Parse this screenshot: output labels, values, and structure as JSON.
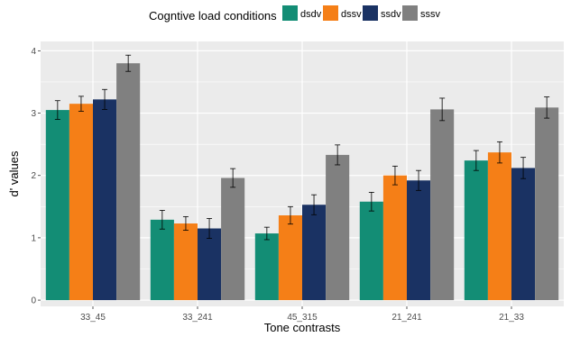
{
  "chart_data": {
    "type": "bar",
    "categories": [
      "33_45",
      "33_241",
      "45_315",
      "21_241",
      "21_33"
    ],
    "series": [
      {
        "name": "dsdv",
        "color": "#138d75",
        "values": [
          3.05,
          1.29,
          1.07,
          1.58,
          2.24
        ],
        "errors": [
          0.15,
          0.15,
          0.1,
          0.15,
          0.16
        ]
      },
      {
        "name": "dssv",
        "color": "#f57f17",
        "values": [
          3.15,
          1.23,
          1.36,
          2.0,
          2.37
        ],
        "errors": [
          0.12,
          0.11,
          0.14,
          0.15,
          0.17
        ]
      },
      {
        "name": "ssdv",
        "color": "#1a3263",
        "values": [
          3.22,
          1.15,
          1.53,
          1.92,
          2.12
        ],
        "errors": [
          0.16,
          0.16,
          0.16,
          0.16,
          0.17
        ]
      },
      {
        "name": "sssv",
        "color": "#808080",
        "values": [
          3.8,
          1.96,
          2.33,
          3.06,
          3.09
        ],
        "errors": [
          0.13,
          0.15,
          0.16,
          0.18,
          0.17
        ]
      }
    ],
    "title": "",
    "xlabel": "Tone contrasts",
    "ylabel": "d' values",
    "ylim": [
      -0.1,
      4.15
    ],
    "yticks": [
      0,
      1,
      2,
      3,
      4
    ],
    "legend": {
      "title": "Cogntive load conditions",
      "position": "top"
    },
    "grid": true,
    "panel_background": "#ebebeb"
  }
}
